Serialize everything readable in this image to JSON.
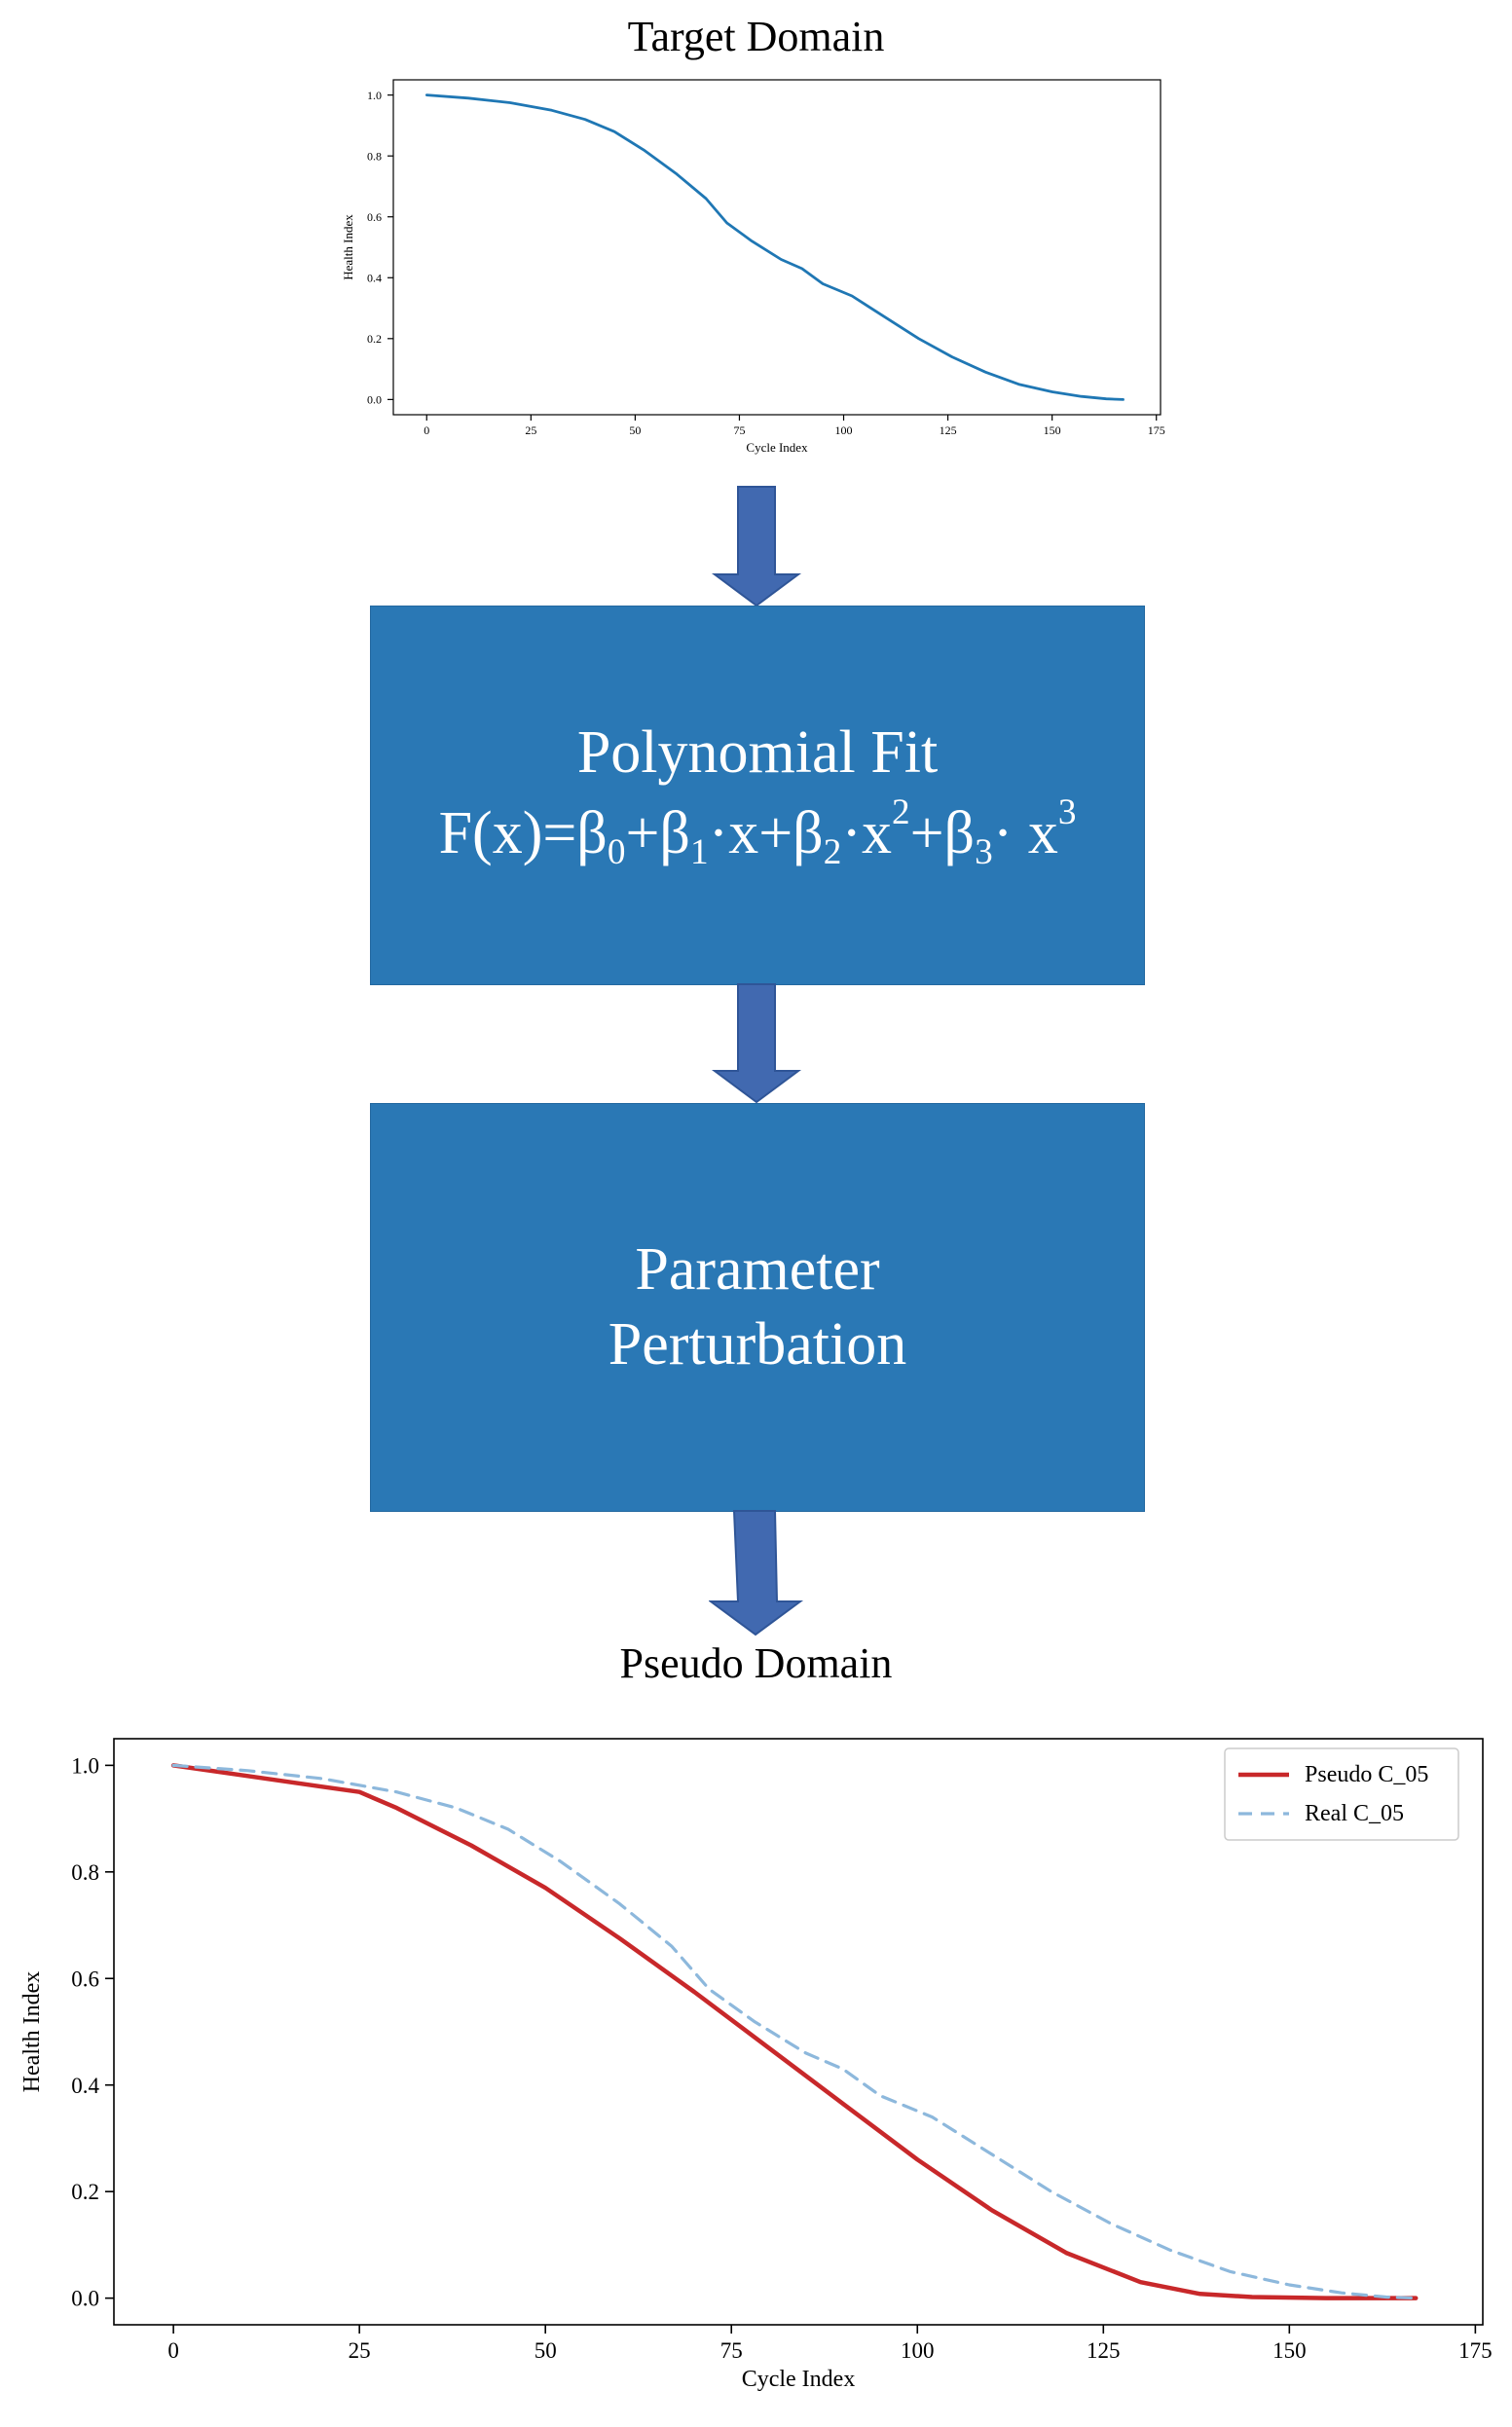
{
  "target_title": "Target Domain",
  "pseudo_title": "Pseudo Domain",
  "fit_box": {
    "title": "Polynomial Fit",
    "formula_parts": {
      "lhs": "F(x)=β",
      "s0": "0",
      "p1": "+β",
      "s1": "1",
      "p2": "·x+β",
      "s2": "2",
      "p3": "·x",
      "e2": "2",
      "p4": "+β",
      "s3": "3",
      "p5": "· x",
      "e3": "3"
    }
  },
  "perturb_box": {
    "line1": "Parameter",
    "line2": "Perturbation"
  },
  "colors": {
    "box_fill": "#2a78b5",
    "arrow_fill": "#4169b0",
    "target_line": "#1f77b4",
    "pseudo_line": "#c8282a",
    "real_line": "#8db8dc"
  },
  "chart_data": [
    {
      "type": "line",
      "title": "",
      "xlabel": "Cycle Index",
      "ylabel": "Health Index",
      "xlim": [
        -8,
        176
      ],
      "ylim": [
        -0.05,
        1.05
      ],
      "xticks": [
        0,
        25,
        50,
        75,
        100,
        125,
        150,
        175
      ],
      "yticks": [
        0.0,
        0.2,
        0.4,
        0.6,
        0.8,
        1.0
      ],
      "xtick_labels": [
        "0",
        "25",
        "50",
        "75",
        "100",
        "125",
        "150",
        "175"
      ],
      "ytick_labels": [
        "0.0",
        "0.2",
        "0.4",
        "0.6",
        "0.8",
        "1.0"
      ],
      "grid": false,
      "series": [
        {
          "name": "",
          "color": "#1f77b4",
          "x": [
            0,
            10,
            20,
            30,
            38,
            45,
            52,
            60,
            67,
            72,
            78,
            85,
            90,
            95,
            102,
            110,
            118,
            126,
            134,
            142,
            150,
            157,
            163,
            167
          ],
          "y": [
            1.0,
            0.99,
            0.975,
            0.95,
            0.92,
            0.88,
            0.82,
            0.74,
            0.66,
            0.58,
            0.52,
            0.46,
            0.43,
            0.38,
            0.34,
            0.27,
            0.2,
            0.14,
            0.09,
            0.05,
            0.025,
            0.01,
            0.002,
            0.0
          ]
        }
      ]
    },
    {
      "type": "line",
      "title": "",
      "xlabel": "Cycle Index",
      "ylabel": "Health Index",
      "xlim": [
        -8,
        176
      ],
      "ylim": [
        -0.05,
        1.05
      ],
      "xticks": [
        0,
        25,
        50,
        75,
        100,
        125,
        150,
        175
      ],
      "yticks": [
        0.0,
        0.2,
        0.4,
        0.6,
        0.8,
        1.0
      ],
      "xtick_labels": [
        "0",
        "25",
        "50",
        "75",
        "100",
        "125",
        "150",
        "175"
      ],
      "ytick_labels": [
        "0.0",
        "0.2",
        "0.4",
        "0.6",
        "0.8",
        "1.0"
      ],
      "grid": false,
      "legend": "top-right",
      "series": [
        {
          "name": "Pseudo C_05",
          "color": "#c8282a",
          "style": "solid",
          "x": [
            0,
            10,
            20,
            25,
            30,
            40,
            50,
            60,
            70,
            80,
            90,
            100,
            110,
            120,
            130,
            138,
            145,
            155,
            167
          ],
          "y": [
            1.0,
            0.98,
            0.96,
            0.95,
            0.92,
            0.85,
            0.77,
            0.675,
            0.575,
            0.47,
            0.365,
            0.26,
            0.165,
            0.085,
            0.03,
            0.008,
            0.002,
            0.0,
            0.0
          ]
        },
        {
          "name": "Real C_05",
          "color": "#8db8dc",
          "style": "dashed",
          "x": [
            0,
            10,
            20,
            30,
            38,
            45,
            52,
            60,
            67,
            72,
            78,
            85,
            90,
            95,
            102,
            110,
            118,
            126,
            134,
            142,
            150,
            157,
            163,
            167
          ],
          "y": [
            1.0,
            0.99,
            0.975,
            0.95,
            0.92,
            0.88,
            0.82,
            0.74,
            0.66,
            0.58,
            0.52,
            0.46,
            0.43,
            0.38,
            0.34,
            0.27,
            0.2,
            0.14,
            0.09,
            0.05,
            0.025,
            0.01,
            0.002,
            0.0
          ]
        }
      ]
    }
  ]
}
